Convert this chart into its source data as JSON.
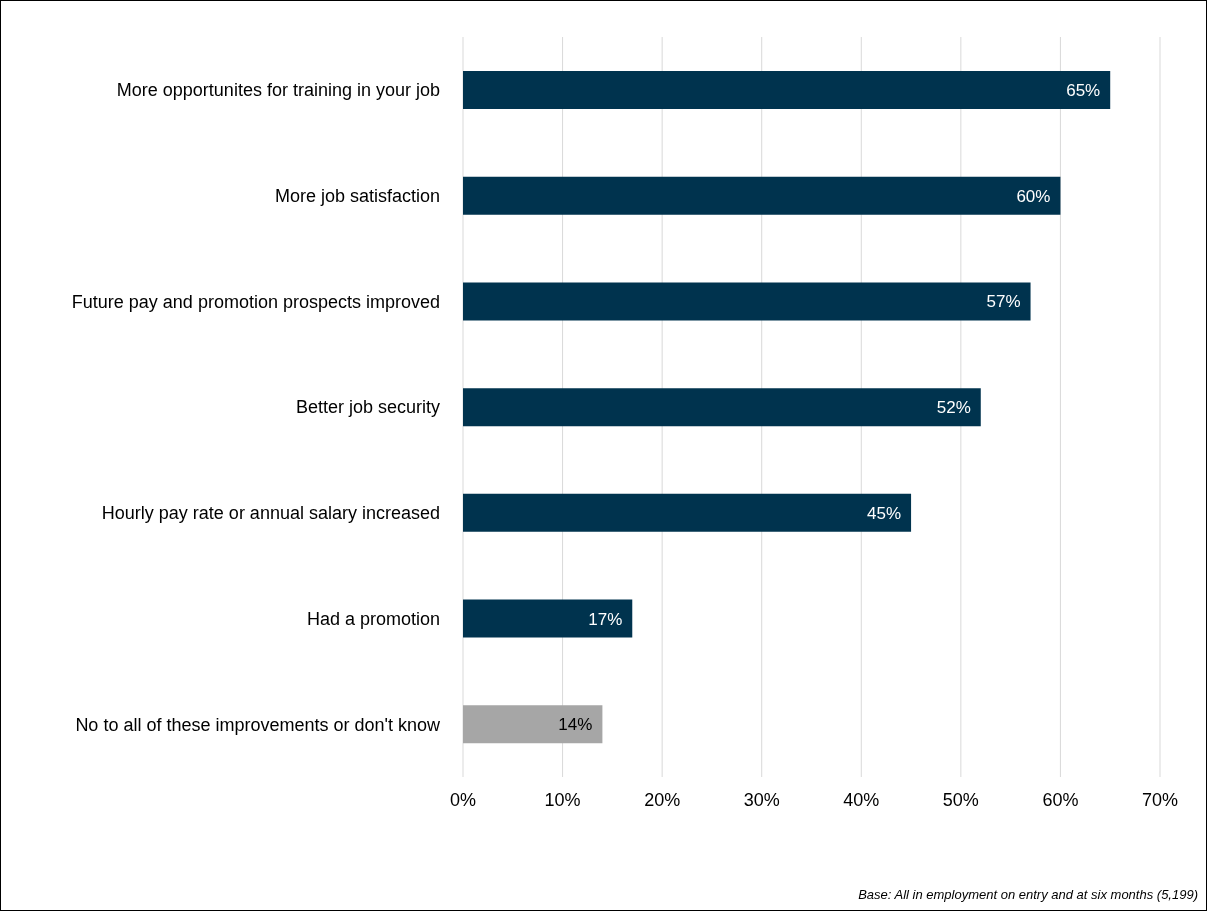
{
  "chart_data": {
    "type": "bar",
    "orientation": "horizontal",
    "categories": [
      "More opportunites for training in your job",
      "More job satisfaction",
      "Future pay and promotion prospects improved",
      "Better job security",
      "Hourly pay rate or annual salary increased",
      "Had a promotion",
      "No to all of these improvements or don't know"
    ],
    "values": [
      65,
      60,
      57,
      52,
      45,
      17,
      14
    ],
    "colors": [
      "#00334e",
      "#00334e",
      "#00334e",
      "#00334e",
      "#00334e",
      "#00334e",
      "#a6a6a6"
    ],
    "value_labels": [
      "65%",
      "60%",
      "57%",
      "52%",
      "45%",
      "17%",
      "14%"
    ],
    "xlim": [
      0,
      70
    ],
    "xticks": [
      {
        "value": 0,
        "label": "0%"
      },
      {
        "value": 10,
        "label": "10%"
      },
      {
        "value": 20,
        "label": "20%"
      },
      {
        "value": 30,
        "label": "30%"
      },
      {
        "value": 40,
        "label": "40%"
      },
      {
        "value": 50,
        "label": "50%"
      },
      {
        "value": 60,
        "label": "60%"
      },
      {
        "value": 70,
        "label": "70%"
      }
    ],
    "grid": "x",
    "annotations": [
      "Base: All in employment on entry and at six months (5,199)"
    ]
  }
}
